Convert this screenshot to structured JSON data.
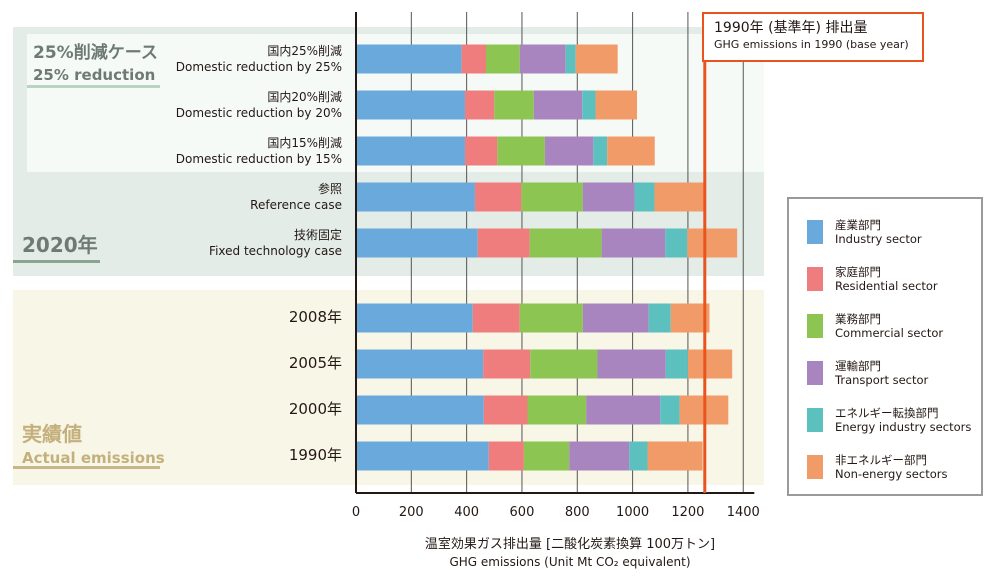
{
  "chart_data": {
    "type": "bar",
    "orientation": "horizontal",
    "stacked": true,
    "xlabel": "温室効果ガス排出量 [二酸化炭素換算 100万トン]",
    "xlabel_en": "GHG emissions (Unit Mt CO₂ equivalent)",
    "xlim": [
      0,
      1480
    ],
    "x_ticks": [
      0,
      200,
      400,
      600,
      800,
      1000,
      1200,
      1400
    ],
    "grid": "vertical",
    "reference_line": {
      "value": 1261,
      "label_jp": "1990年 (基準年) 排出量",
      "label_en": "GHG emissions in 1990 (base year)",
      "color": "#e8531e"
    },
    "groups": [
      {
        "name_jp": "2020年",
        "name_en": ""
      },
      {
        "name_jp": "実績値",
        "name_en": "Actual emissions"
      }
    ],
    "subgroup": {
      "name_jp": "25%削減ケース",
      "name_en": "25% reduction"
    },
    "categories": [
      {
        "jp": "国内25%削減",
        "en": "Domestic reduction by 25%"
      },
      {
        "jp": "国内20%削減",
        "en": "Domestic reduction by 20%"
      },
      {
        "jp": "国内15%削減",
        "en": "Domestic reduction by 15%"
      },
      {
        "jp": "参照",
        "en": "Reference case"
      },
      {
        "jp": "技術固定",
        "en": "Fixed technology case"
      },
      {
        "jp": "2008年",
        "en": ""
      },
      {
        "jp": "2005年",
        "en": ""
      },
      {
        "jp": "2000年",
        "en": ""
      },
      {
        "jp": "1990年",
        "en": ""
      }
    ],
    "series": [
      {
        "name": "産業部門",
        "name_en": "Industry sector",
        "color": "#6aa9dc",
        "values": [
          382,
          394,
          394,
          430,
          440,
          422,
          460,
          462,
          480
        ]
      },
      {
        "name": "家庭部門",
        "name_en": "Residential sector",
        "color": "#ef7d7d",
        "values": [
          88,
          106,
          117,
          168,
          188,
          170,
          170,
          158,
          127
        ]
      },
      {
        "name": "業務部門",
        "name_en": "Commercial sector",
        "color": "#8dc553",
        "values": [
          122,
          143,
          172,
          222,
          260,
          228,
          243,
          212,
          164
        ]
      },
      {
        "name": "運輸部門",
        "name_en": "Transport sector",
        "color": "#a985bf",
        "values": [
          166,
          175,
          175,
          187,
          230,
          238,
          247,
          268,
          217
        ]
      },
      {
        "name": "エネルギー転換部門",
        "name_en": "Energy industry sectors",
        "color": "#5cc0bf",
        "values": [
          36,
          48,
          50,
          72,
          80,
          80,
          80,
          70,
          66
        ]
      },
      {
        "name": "非エネルギー部門",
        "name_en": "Non-energy sectors",
        "color": "#f19b69",
        "values": [
          152,
          150,
          172,
          178,
          180,
          140,
          160,
          176,
          199
        ]
      }
    ]
  }
}
